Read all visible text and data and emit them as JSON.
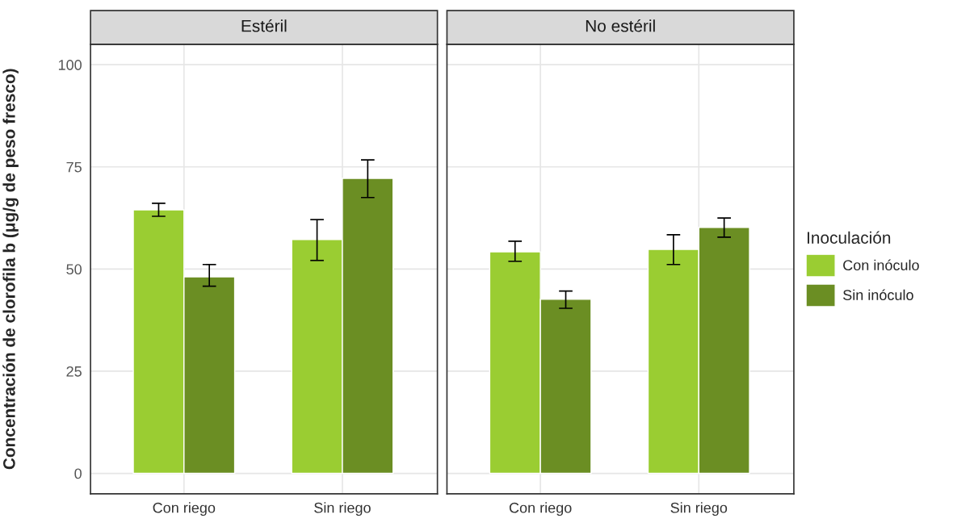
{
  "chart_data": [
    {
      "type": "bar",
      "title": "Estéril",
      "ylabel": "Concentración de clorofila b (μg/g de peso fresco)",
      "categories": [
        "Con riego",
        "Sin riego"
      ],
      "series": [
        {
          "color": "#9acd32",
          "values": [
            64.5,
            57.2
          ],
          "errors": [
            [
              62.9,
              66.1
            ],
            [
              52.1,
              62.1
            ]
          ]
        },
        {
          "color": "#6b8e23",
          "values": [
            48.1,
            72.2
          ],
          "errors": [
            [
              45.8,
              51.1
            ],
            [
              67.5,
              76.7
            ]
          ]
        }
      ],
      "ylim": [
        -5,
        105
      ],
      "yticks": [
        0,
        25,
        50,
        75,
        100
      ],
      "grid": true
    },
    {
      "type": "bar",
      "title": "No estéril",
      "legend_title": "Inoculación",
      "categories": [
        "Con riego",
        "Sin riego"
      ],
      "series": [
        {
          "name": "Con inóculo",
          "color": "#9acd32",
          "values": [
            54.2,
            54.8
          ],
          "errors": [
            [
              51.9,
              56.8
            ],
            [
              51.1,
              58.4
            ]
          ]
        },
        {
          "name": "Sin inóculo",
          "color": "#6b8e23",
          "values": [
            42.6,
            60.2
          ],
          "errors": [
            [
              40.4,
              44.6
            ],
            [
              57.8,
              62.5
            ]
          ]
        }
      ],
      "ylim": [
        -5,
        105
      ],
      "yticks": [
        0,
        25,
        50,
        75,
        100
      ],
      "grid": true,
      "tick_labels": "x",
      "legend": "right"
    }
  ]
}
